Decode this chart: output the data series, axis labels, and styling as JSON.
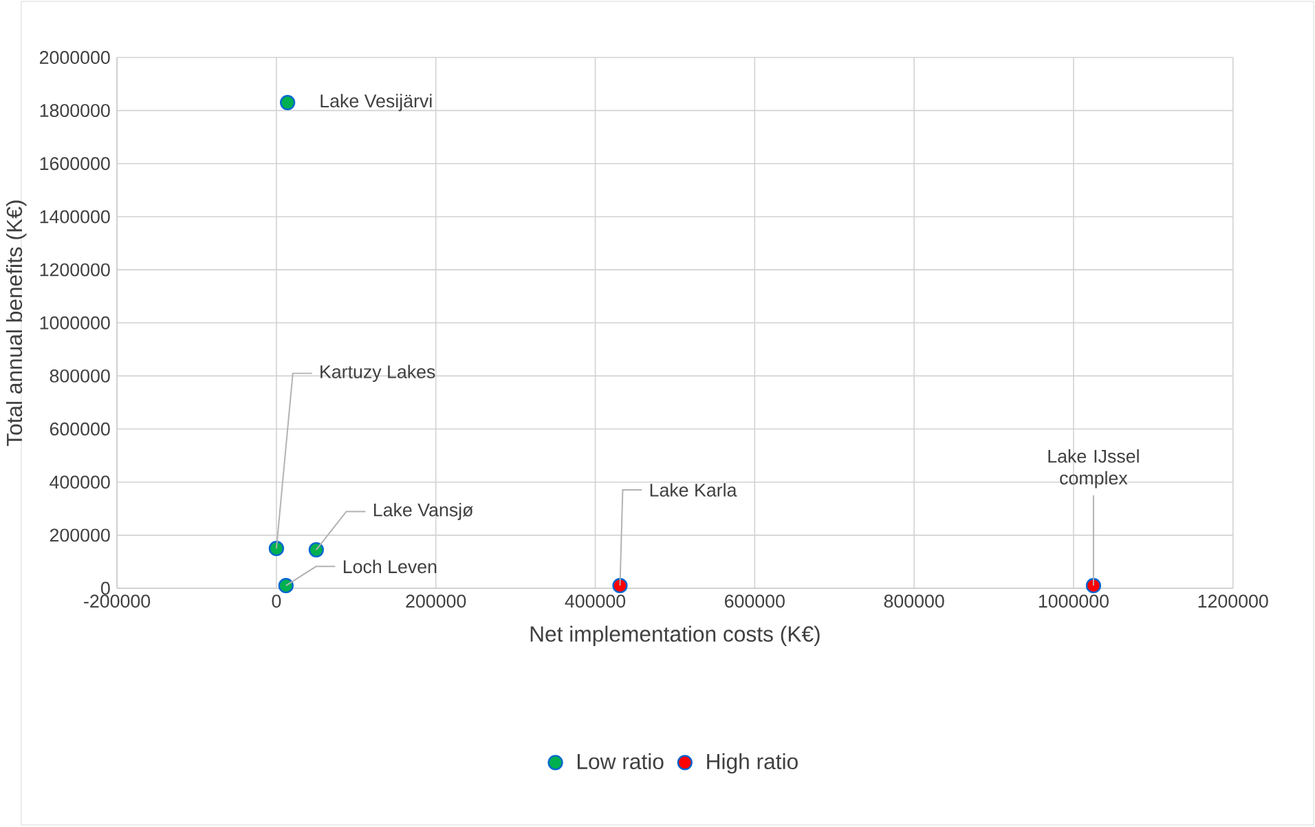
{
  "chart_data": {
    "type": "scatter",
    "xlabel": "Net implementation costs (K€)",
    "ylabel": "Total annual benefits (K€)",
    "series": [
      {
        "name": "Low ratio",
        "color": "#00b050",
        "x": [
          14000,
          0,
          50000,
          12000
        ],
        "values": [
          1830000,
          150000,
          145000,
          10000
        ]
      },
      {
        "name": "High ratio",
        "color": "#ff0000",
        "x": [
          431000,
          1025000
        ],
        "values": [
          10000,
          10000
        ]
      }
    ],
    "xlim": [
      -200000,
      1200000
    ],
    "ylim": [
      0,
      2000000
    ],
    "xticks": [
      -200000,
      0,
      200000,
      400000,
      600000,
      800000,
      1000000,
      1200000
    ],
    "yticks": [
      0,
      200000,
      400000,
      600000,
      800000,
      1000000,
      1200000,
      1400000,
      1600000,
      1800000,
      2000000
    ],
    "annotations": [
      {
        "text": "Lake Vesijärvi",
        "x": 14000,
        "y": 1830000
      },
      {
        "text": "Kartuzy Lakes",
        "x": 0,
        "y": 150000
      },
      {
        "text": "Lake Vansjø",
        "x": 50000,
        "y": 145000
      },
      {
        "text": "Loch Leven",
        "x": 12000,
        "y": 10000
      },
      {
        "text": "Lake Karla",
        "x": 431000,
        "y": 10000
      },
      {
        "text": "Lake IJssel complex",
        "x": 1025000,
        "y": 10000
      }
    ],
    "grid": true,
    "legend": "bottom"
  }
}
